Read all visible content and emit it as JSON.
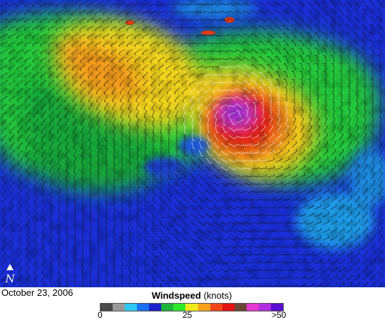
{
  "image": {
    "date": "October 23, 2006",
    "legend": {
      "title_bold": "Windspeed",
      "title_unit": "(knots)",
      "ticks": [
        "0",
        "25",
        ">50"
      ],
      "colors": [
        "#4a4a4a",
        "#9a9a9a",
        "#2ec8f0",
        "#1a6ff0",
        "#1b22c8",
        "#1fb43a",
        "#2ee82c",
        "#f2e81c",
        "#f7a21c",
        "#f0461a",
        "#e01212",
        "#6b4636",
        "#e43ad0",
        "#b02ee0",
        "#5b0ed0"
      ]
    },
    "north_arrow": {
      "label": "N",
      "icon": "north-arrow-icon"
    },
    "map": {
      "content": "wind-speed field with circulating wind barbs around a storm center",
      "palette": {
        "low": "#1b2ad8",
        "moderate": "#22c83a",
        "high": "#f0c81c",
        "very_high": "#e8281a",
        "extreme": "#b03ad8"
      }
    }
  }
}
